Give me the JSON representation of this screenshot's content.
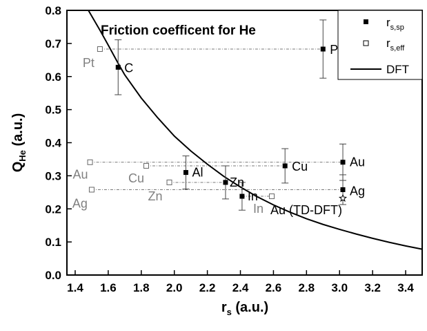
{
  "chart_data": {
    "type": "scatter",
    "title": "Friction coefficent for He",
    "xlabel": "r",
    "xlabel_sub": "s",
    "xlabel_unit": " (a.u.)",
    "ylabel": "Q",
    "ylabel_sub": "He",
    "ylabel_unit": " (a.u.)",
    "xlim": [
      1.35,
      3.5
    ],
    "ylim": [
      0.0,
      0.8
    ],
    "xticks": [
      1.4,
      1.6,
      1.8,
      2.0,
      2.2,
      2.4,
      2.6,
      2.8,
      3.0,
      3.2,
      3.4
    ],
    "yticks": [
      0.0,
      0.1,
      0.2,
      0.3,
      0.4,
      0.5,
      0.6,
      0.7,
      0.8
    ],
    "grid": false,
    "legend": {
      "position": "top-right",
      "entries": [
        {
          "label": "r",
          "sub": "s,sp",
          "marker": "filled-square"
        },
        {
          "label": "r",
          "sub": "s,eff",
          "marker": "open-square"
        },
        {
          "label": "DFT",
          "marker": "line"
        }
      ]
    },
    "series": [
      {
        "marker": "filled-square",
        "points": [
          {
            "label": "Pt",
            "x": 2.9,
            "y": 0.683,
            "err": 0.088
          },
          {
            "label": "C",
            "x": 1.66,
            "y": 0.628,
            "err": 0.083
          },
          {
            "label": "Al",
            "x": 2.07,
            "y": 0.31,
            "err": 0.05
          },
          {
            "label": "Zn",
            "x": 2.31,
            "y": 0.28,
            "err": 0.05
          },
          {
            "label": "In",
            "x": 2.41,
            "y": 0.238,
            "err": 0.042
          },
          {
            "label": "Cu",
            "x": 2.67,
            "y": 0.33,
            "err": 0.052
          },
          {
            "label": "Au",
            "x": 3.02,
            "y": 0.341,
            "err": 0.055
          },
          {
            "label": "Ag",
            "x": 3.02,
            "y": 0.258,
            "err": 0.045
          }
        ]
      },
      {
        "marker": "open-square",
        "points": [
          {
            "label": "Pt",
            "x": 1.55,
            "y": 0.683
          },
          {
            "label": "Au",
            "x": 1.49,
            "y": 0.341
          },
          {
            "label": "Cu",
            "x": 1.83,
            "y": 0.33
          },
          {
            "label": "Ag",
            "x": 1.5,
            "y": 0.258
          },
          {
            "label": "Zn",
            "x": 1.97,
            "y": 0.28
          },
          {
            "label": "In",
            "x": 2.59,
            "y": 0.238
          }
        ]
      },
      {
        "marker": "star",
        "points": [
          {
            "label": "Au (TD-DFT)",
            "x": 3.02,
            "y": 0.232
          }
        ]
      },
      {
        "marker": "line",
        "points": [
          {
            "x": 1.48,
            "y": 0.8
          },
          {
            "x": 1.55,
            "y": 0.74
          },
          {
            "x": 1.6,
            "y": 0.695
          },
          {
            "x": 1.66,
            "y": 0.64
          },
          {
            "x": 1.7,
            "y": 0.605
          },
          {
            "x": 1.8,
            "y": 0.535
          },
          {
            "x": 1.9,
            "y": 0.475
          },
          {
            "x": 2.0,
            "y": 0.42
          },
          {
            "x": 2.1,
            "y": 0.375
          },
          {
            "x": 2.2,
            "y": 0.335
          },
          {
            "x": 2.3,
            "y": 0.298
          },
          {
            "x": 2.4,
            "y": 0.266
          },
          {
            "x": 2.5,
            "y": 0.237
          },
          {
            "x": 2.6,
            "y": 0.212
          },
          {
            "x": 2.7,
            "y": 0.19
          },
          {
            "x": 2.8,
            "y": 0.17
          },
          {
            "x": 2.9,
            "y": 0.153
          },
          {
            "x": 3.0,
            "y": 0.138
          },
          {
            "x": 3.1,
            "y": 0.124
          },
          {
            "x": 3.2,
            "y": 0.111
          },
          {
            "x": 3.3,
            "y": 0.099
          },
          {
            "x": 3.4,
            "y": 0.088
          },
          {
            "x": 3.5,
            "y": 0.078
          }
        ]
      }
    ],
    "connectors": [
      {
        "x1": 1.55,
        "x2": 2.9,
        "y": 0.683
      },
      {
        "x1": 1.49,
        "x2": 3.02,
        "y": 0.341
      },
      {
        "x1": 1.83,
        "x2": 2.67,
        "y": 0.33
      },
      {
        "x1": 1.5,
        "x2": 3.02,
        "y": 0.258
      },
      {
        "x1": 1.97,
        "x2": 2.31,
        "y": 0.28
      },
      {
        "x1": 2.41,
        "x2": 2.59,
        "y": 0.238
      }
    ]
  }
}
